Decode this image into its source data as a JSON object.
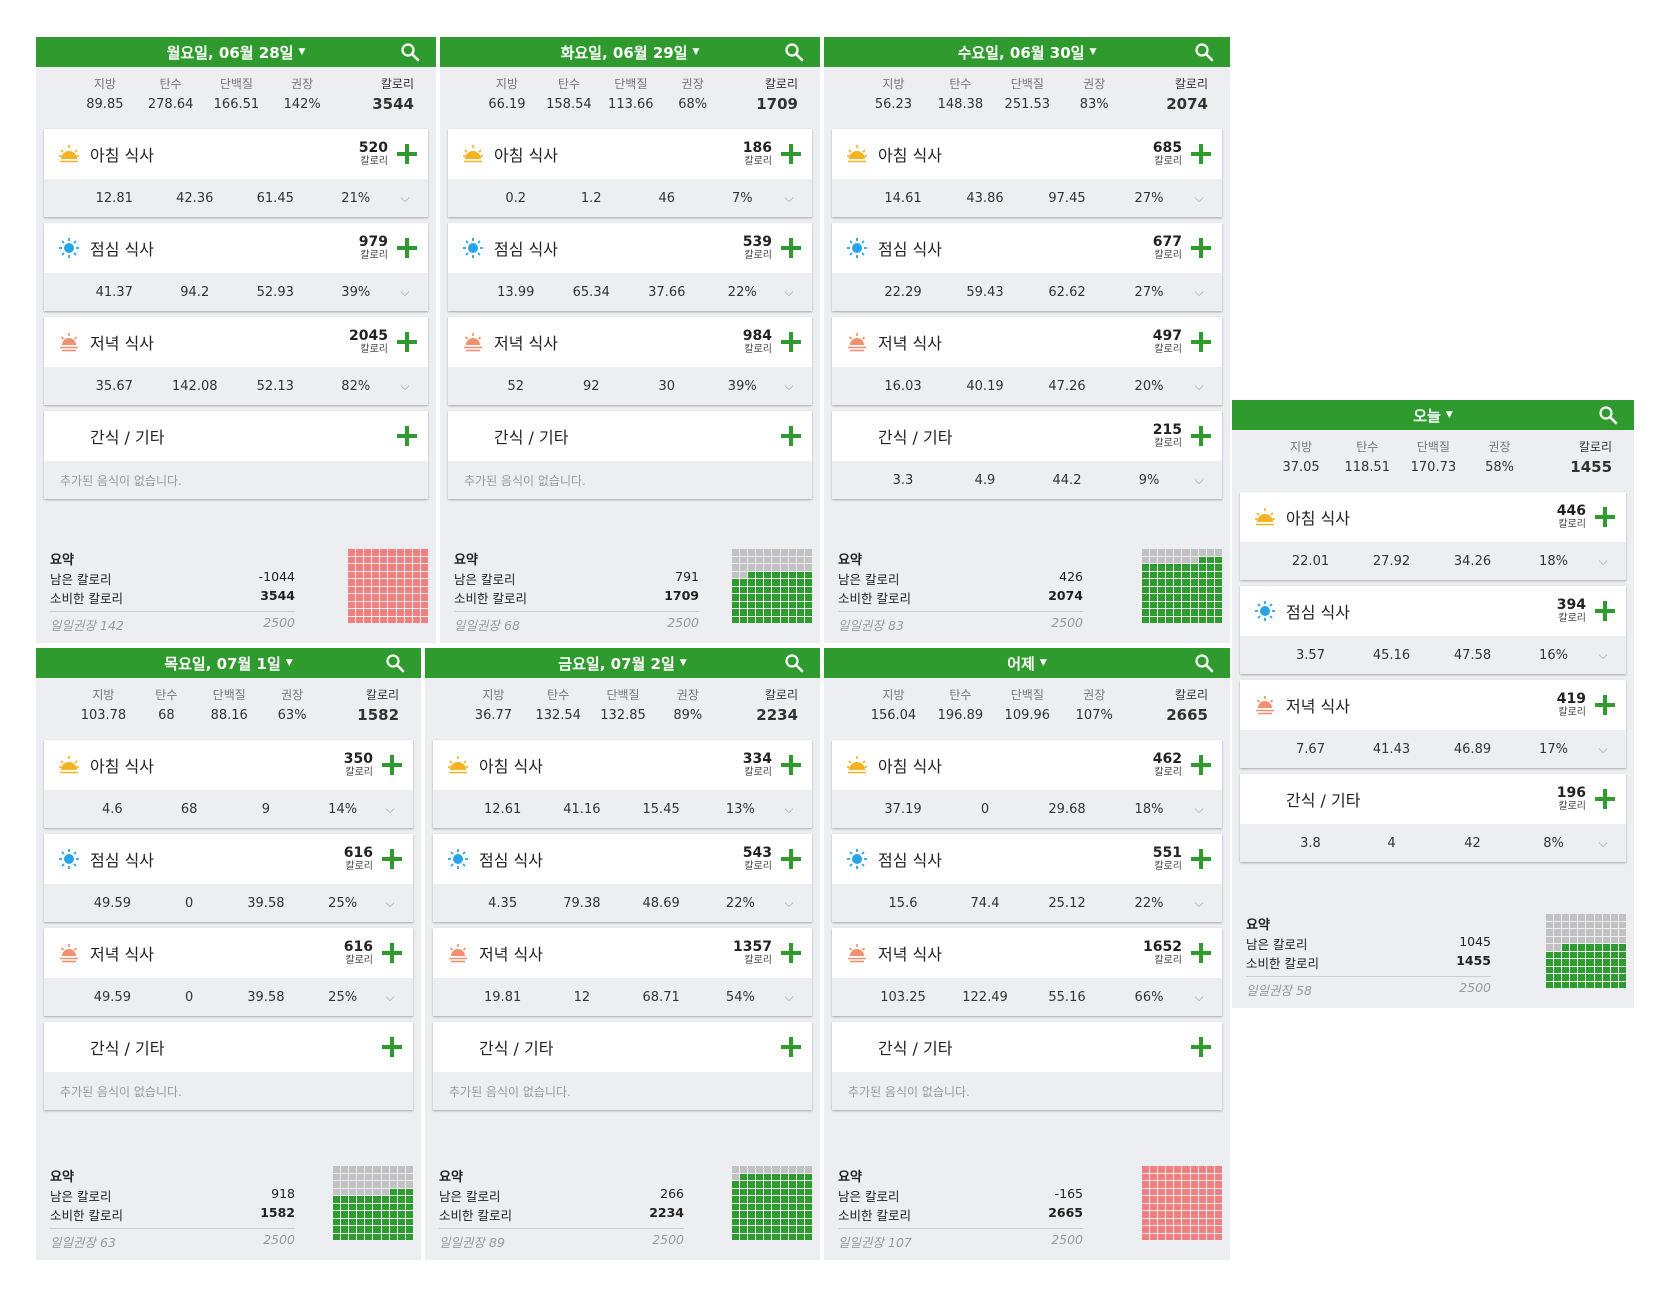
{
  "labels": {
    "fat": "지방",
    "carbs": "탄수",
    "protein": "단백질",
    "recommended": "권장",
    "calories": "칼로리",
    "cal_unit": "칼로리",
    "no_food": "추가된 음식이 없습니다.",
    "summary": "요약",
    "remaining": "남은 칼로리",
    "consumed": "소비한 칼로리",
    "daily_rec": "일일권장",
    "daily_goal": "2500"
  },
  "meal_names": {
    "breakfast": "아침 식사",
    "lunch": "점심 식사",
    "dinner": "저녁 식사",
    "snack": "간식 / 기타"
  },
  "colors": {
    "green": "#2f9a2e",
    "over": "#f08080",
    "grey": "#c2c2c2"
  },
  "days": [
    {
      "title": "월요일, 06월 28일",
      "totals": {
        "fat": "89.85",
        "carbs": "278.64",
        "protein": "166.51",
        "rec": "142%",
        "cal": "3544"
      },
      "meals": [
        {
          "key": "breakfast",
          "cal": "520",
          "fat": "12.81",
          "carbs": "42.36",
          "protein": "61.45",
          "rec": "21%"
        },
        {
          "key": "lunch",
          "cal": "979",
          "fat": "41.37",
          "carbs": "94.2",
          "protein": "52.93",
          "rec": "39%"
        },
        {
          "key": "dinner",
          "cal": "2045",
          "fat": "35.67",
          "carbs": "142.08",
          "protein": "52.13",
          "rec": "82%"
        },
        {
          "key": "snack",
          "cal": "",
          "empty": true
        }
      ],
      "summary": {
        "remaining": "-1044",
        "consumed": "3544",
        "rec_pct": "142",
        "fill": 1.0,
        "over": true
      }
    },
    {
      "title": "화요일, 06월 29일",
      "totals": {
        "fat": "66.19",
        "carbs": "158.54",
        "protein": "113.66",
        "rec": "68%",
        "cal": "1709"
      },
      "meals": [
        {
          "key": "breakfast",
          "cal": "186",
          "fat": "0.2",
          "carbs": "1.2",
          "protein": "46",
          "rec": "7%"
        },
        {
          "key": "lunch",
          "cal": "539",
          "fat": "13.99",
          "carbs": "65.34",
          "protein": "37.66",
          "rec": "22%"
        },
        {
          "key": "dinner",
          "cal": "984",
          "fat": "52",
          "carbs": "92",
          "protein": "30",
          "rec": "39%"
        },
        {
          "key": "snack",
          "cal": "",
          "empty": true
        }
      ],
      "summary": {
        "remaining": "791",
        "consumed": "1709",
        "rec_pct": "68",
        "fill": 0.68,
        "over": false
      }
    },
    {
      "title": "수요일, 06월 30일",
      "totals": {
        "fat": "56.23",
        "carbs": "148.38",
        "protein": "251.53",
        "rec": "83%",
        "cal": "2074"
      },
      "meals": [
        {
          "key": "breakfast",
          "cal": "685",
          "fat": "14.61",
          "carbs": "43.86",
          "protein": "97.45",
          "rec": "27%"
        },
        {
          "key": "lunch",
          "cal": "677",
          "fat": "22.29",
          "carbs": "59.43",
          "protein": "62.62",
          "rec": "27%"
        },
        {
          "key": "dinner",
          "cal": "497",
          "fat": "16.03",
          "carbs": "40.19",
          "protein": "47.26",
          "rec": "20%"
        },
        {
          "key": "snack",
          "cal": "215",
          "fat": "3.3",
          "carbs": "4.9",
          "protein": "44.2",
          "rec": "9%"
        }
      ],
      "summary": {
        "remaining": "426",
        "consumed": "2074",
        "rec_pct": "83",
        "fill": 0.83,
        "over": false
      }
    },
    {
      "title": "목요일, 07월 1일",
      "totals": {
        "fat": "103.78",
        "carbs": "68",
        "protein": "88.16",
        "rec": "63%",
        "cal": "1582"
      },
      "meals": [
        {
          "key": "breakfast",
          "cal": "350",
          "fat": "4.6",
          "carbs": "68",
          "protein": "9",
          "rec": "14%"
        },
        {
          "key": "lunch",
          "cal": "616",
          "fat": "49.59",
          "carbs": "0",
          "protein": "39.58",
          "rec": "25%"
        },
        {
          "key": "dinner",
          "cal": "616",
          "fat": "49.59",
          "carbs": "0",
          "protein": "39.58",
          "rec": "25%"
        },
        {
          "key": "snack",
          "cal": "",
          "empty": true
        }
      ],
      "summary": {
        "remaining": "918",
        "consumed": "1582",
        "rec_pct": "63",
        "fill": 0.63,
        "over": false
      }
    },
    {
      "title": "금요일, 07월 2일",
      "totals": {
        "fat": "36.77",
        "carbs": "132.54",
        "protein": "132.85",
        "rec": "89%",
        "cal": "2234"
      },
      "meals": [
        {
          "key": "breakfast",
          "cal": "334",
          "fat": "12.61",
          "carbs": "41.16",
          "protein": "15.45",
          "rec": "13%"
        },
        {
          "key": "lunch",
          "cal": "543",
          "fat": "4.35",
          "carbs": "79.38",
          "protein": "48.69",
          "rec": "22%"
        },
        {
          "key": "dinner",
          "cal": "1357",
          "fat": "19.81",
          "carbs": "12",
          "protein": "68.71",
          "rec": "54%"
        },
        {
          "key": "snack",
          "cal": "",
          "empty": true
        }
      ],
      "summary": {
        "remaining": "266",
        "consumed": "2234",
        "rec_pct": "89",
        "fill": 0.89,
        "over": false
      }
    },
    {
      "title": "어제",
      "totals": {
        "fat": "156.04",
        "carbs": "196.89",
        "protein": "109.96",
        "rec": "107%",
        "cal": "2665"
      },
      "meals": [
        {
          "key": "breakfast",
          "cal": "462",
          "fat": "37.19",
          "carbs": "0",
          "protein": "29.68",
          "rec": "18%"
        },
        {
          "key": "lunch",
          "cal": "551",
          "fat": "15.6",
          "carbs": "74.4",
          "protein": "25.12",
          "rec": "22%"
        },
        {
          "key": "dinner",
          "cal": "1652",
          "fat": "103.25",
          "carbs": "122.49",
          "protein": "55.16",
          "rec": "66%"
        },
        {
          "key": "snack",
          "cal": "",
          "empty": true
        }
      ],
      "summary": {
        "remaining": "-165",
        "consumed": "2665",
        "rec_pct": "107",
        "fill": 1.0,
        "over": true
      }
    },
    {
      "title": "오늘",
      "totals": {
        "fat": "37.05",
        "carbs": "118.51",
        "protein": "170.73",
        "rec": "58%",
        "cal": "1455"
      },
      "meals": [
        {
          "key": "breakfast",
          "cal": "446",
          "fat": "22.01",
          "carbs": "27.92",
          "protein": "34.26",
          "rec": "18%"
        },
        {
          "key": "lunch",
          "cal": "394",
          "fat": "3.57",
          "carbs": "45.16",
          "protein": "47.58",
          "rec": "16%"
        },
        {
          "key": "dinner",
          "cal": "419",
          "fat": "7.67",
          "carbs": "41.43",
          "protein": "46.89",
          "rec": "17%"
        },
        {
          "key": "snack",
          "cal": "196",
          "fat": "3.8",
          "carbs": "4",
          "protein": "42",
          "rec": "8%"
        }
      ],
      "summary": {
        "remaining": "1045",
        "consumed": "1455",
        "rec_pct": "58",
        "fill": 0.58,
        "over": false
      }
    }
  ]
}
